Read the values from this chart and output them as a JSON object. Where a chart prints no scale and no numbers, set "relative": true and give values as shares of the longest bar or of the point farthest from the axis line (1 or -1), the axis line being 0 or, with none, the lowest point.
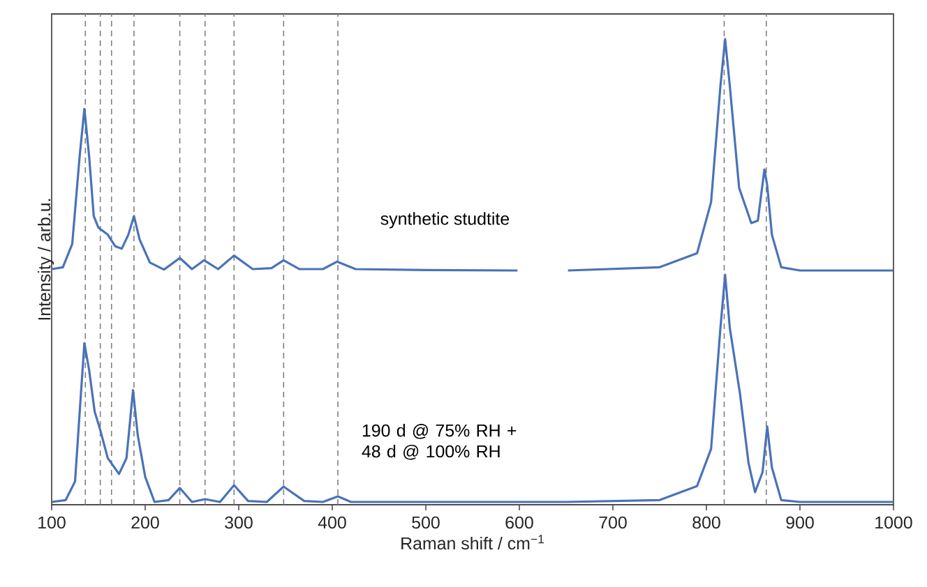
{
  "chart_data": {
    "type": "line",
    "relative": true,
    "xlabel": "Raman shift / cm$^{−1}$",
    "ylabel": "Intensity / arb.u.",
    "xlim": [
      100,
      1000
    ],
    "xticks": [
      100,
      200,
      300,
      400,
      500,
      600,
      700,
      800,
      900,
      1000
    ],
    "grid": false,
    "legend": false,
    "marker": "none",
    "line_style": "solid",
    "series": [
      {
        "name": "synthetic studtite",
        "color": "#4a72b8",
        "x": [
          100,
          112,
          122,
          130,
          135,
          140,
          145,
          150,
          160,
          168,
          175,
          182,
          188,
          194,
          205,
          220,
          237,
          250,
          263,
          278,
          295,
          315,
          335,
          348,
          365,
          390,
          405,
          425,
          500,
          598,
          620,
          652,
          750,
          790,
          805,
          815,
          820,
          825,
          835,
          848,
          855,
          862,
          865,
          870,
          880,
          900,
          1000
        ],
        "values": [
          0.506,
          0.51,
          0.56,
          0.75,
          0.85,
          0.75,
          0.62,
          0.595,
          0.58,
          0.555,
          0.55,
          0.58,
          0.62,
          0.57,
          0.52,
          0.505,
          0.53,
          0.506,
          0.525,
          0.506,
          0.535,
          0.506,
          0.508,
          0.525,
          0.506,
          0.506,
          0.522,
          0.506,
          0.504,
          0.503,
          null,
          0.503,
          0.51,
          0.54,
          0.65,
          0.9,
          1.0,
          0.9,
          0.68,
          0.605,
          0.61,
          0.72,
          0.686,
          0.58,
          0.51,
          0.503,
          0.503
        ]
      },
      {
        "name": "190 d @ 75% RH + 48 d @ 100% RH",
        "color": "#4a72b8",
        "x": [
          100,
          115,
          125,
          130,
          135,
          140,
          146,
          152,
          160,
          172,
          180,
          187,
          192,
          200,
          210,
          225,
          237,
          250,
          264,
          280,
          295,
          310,
          330,
          348,
          370,
          390,
          406,
          420,
          500,
          650,
          750,
          790,
          805,
          815,
          820,
          825,
          836,
          845,
          852,
          860,
          865,
          870,
          880,
          900,
          1000
        ],
        "values": [
          0.006,
          0.01,
          0.05,
          0.2,
          0.347,
          0.29,
          0.2,
          0.16,
          0.1,
          0.066,
          0.1,
          0.246,
          0.15,
          0.06,
          0.006,
          0.01,
          0.036,
          0.006,
          0.012,
          0.006,
          0.042,
          0.008,
          0.006,
          0.039,
          0.008,
          0.006,
          0.018,
          0.006,
          0.006,
          0.006,
          0.01,
          0.04,
          0.12,
          0.38,
          0.494,
          0.38,
          0.237,
          0.09,
          0.027,
          0.07,
          0.168,
          0.08,
          0.01,
          0.006,
          0.006
        ]
      }
    ],
    "ref_lines": [
      {
        "axis": "x",
        "value": 136,
        "color": "#808080",
        "line_style": "dashed"
      },
      {
        "axis": "x",
        "value": 152,
        "color": "#808080",
        "line_style": "dashed"
      },
      {
        "axis": "x",
        "value": 164,
        "color": "#808080",
        "line_style": "dashed"
      },
      {
        "axis": "x",
        "value": 188,
        "color": "#808080",
        "line_style": "dashed"
      },
      {
        "axis": "x",
        "value": 237,
        "color": "#808080",
        "line_style": "dashed"
      },
      {
        "axis": "x",
        "value": 264,
        "color": "#808080",
        "line_style": "dashed"
      },
      {
        "axis": "x",
        "value": 295,
        "color": "#808080",
        "line_style": "dashed"
      },
      {
        "axis": "x",
        "value": 348,
        "color": "#808080",
        "line_style": "dashed"
      },
      {
        "axis": "x",
        "value": 406,
        "color": "#808080",
        "line_style": "dashed"
      },
      {
        "axis": "x",
        "value": 819,
        "color": "#808080",
        "line_style": "dashed"
      },
      {
        "axis": "x",
        "value": 864,
        "color": "#808080",
        "line_style": "dashed"
      }
    ]
  }
}
